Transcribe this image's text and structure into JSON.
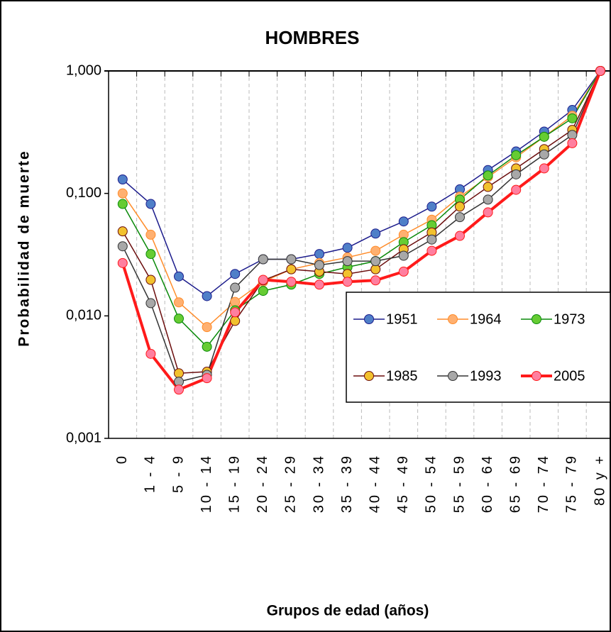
{
  "chart_data": {
    "type": "line",
    "title": "HOMBRES",
    "y_label": "Probabilidad de muerte",
    "x_label": "Grupos de edad (años)",
    "categories": [
      "0",
      "1 - 4",
      "5 - 9",
      "10 - 14",
      "15 - 19",
      "20 - 24",
      "25 - 29",
      "30 - 34",
      "35 - 39",
      "40 - 44",
      "45 - 49",
      "50 - 54",
      "55 - 59",
      "60 - 64",
      "65 - 69",
      "70 - 74",
      "75 - 79",
      "80 y +"
    ],
    "log_y": true,
    "ylim": [
      0.001,
      1
    ],
    "yticks": [
      {
        "value": 0.001,
        "label": "0,001"
      },
      {
        "value": 0.01,
        "label": "0,010"
      },
      {
        "value": 0.1,
        "label": "0,100"
      },
      {
        "value": 1,
        "label": "1,000"
      }
    ],
    "series": [
      {
        "name": "1951",
        "color": "#1c1c8c",
        "marker_color": "#4f7fc8",
        "line_width": 1.5,
        "values": [
          0.13,
          0.082,
          0.021,
          0.0145,
          0.022,
          0.029,
          0.029,
          0.032,
          0.036,
          0.047,
          0.059,
          0.078,
          0.108,
          0.155,
          0.22,
          0.32,
          0.48,
          1.0
        ]
      },
      {
        "name": "1964",
        "color": "#ff8c2a",
        "marker_color": "#ffb070",
        "line_width": 1.5,
        "values": [
          0.1,
          0.046,
          0.0129,
          0.0081,
          0.013,
          0.019,
          0.024,
          0.027,
          0.03,
          0.034,
          0.046,
          0.061,
          0.094,
          0.136,
          0.197,
          0.29,
          0.43,
          1.0
        ]
      },
      {
        "name": "1973",
        "color": "#0a8a0a",
        "marker_color": "#66cc33",
        "line_width": 1.5,
        "values": [
          0.082,
          0.032,
          0.0095,
          0.0056,
          0.0111,
          0.016,
          0.018,
          0.022,
          0.025,
          0.028,
          0.04,
          0.055,
          0.089,
          0.14,
          0.205,
          0.29,
          0.41,
          1.0
        ]
      },
      {
        "name": "1985",
        "color": "#6b0d0d",
        "marker_color": "#f2c12e",
        "line_width": 1.5,
        "values": [
          0.049,
          0.0197,
          0.0034,
          0.0035,
          0.0091,
          0.0195,
          0.024,
          0.023,
          0.022,
          0.024,
          0.035,
          0.048,
          0.078,
          0.113,
          0.16,
          0.23,
          0.33,
          1.0
        ]
      },
      {
        "name": "1993",
        "color": "#333333",
        "marker_color": "#a8a8a8",
        "line_width": 1.5,
        "values": [
          0.037,
          0.0127,
          0.0029,
          0.0033,
          0.017,
          0.029,
          0.029,
          0.026,
          0.028,
          0.028,
          0.031,
          0.042,
          0.064,
          0.089,
          0.143,
          0.208,
          0.3,
          1.0
        ]
      },
      {
        "name": "2005",
        "color": "#ff1a1a",
        "marker_color": "#ff7f9f",
        "line_width": 4,
        "values": [
          0.027,
          0.0049,
          0.0025,
          0.0031,
          0.0107,
          0.0197,
          0.019,
          0.018,
          0.019,
          0.0195,
          0.023,
          0.034,
          0.045,
          0.07,
          0.107,
          0.16,
          0.257,
          1.0
        ]
      }
    ]
  }
}
